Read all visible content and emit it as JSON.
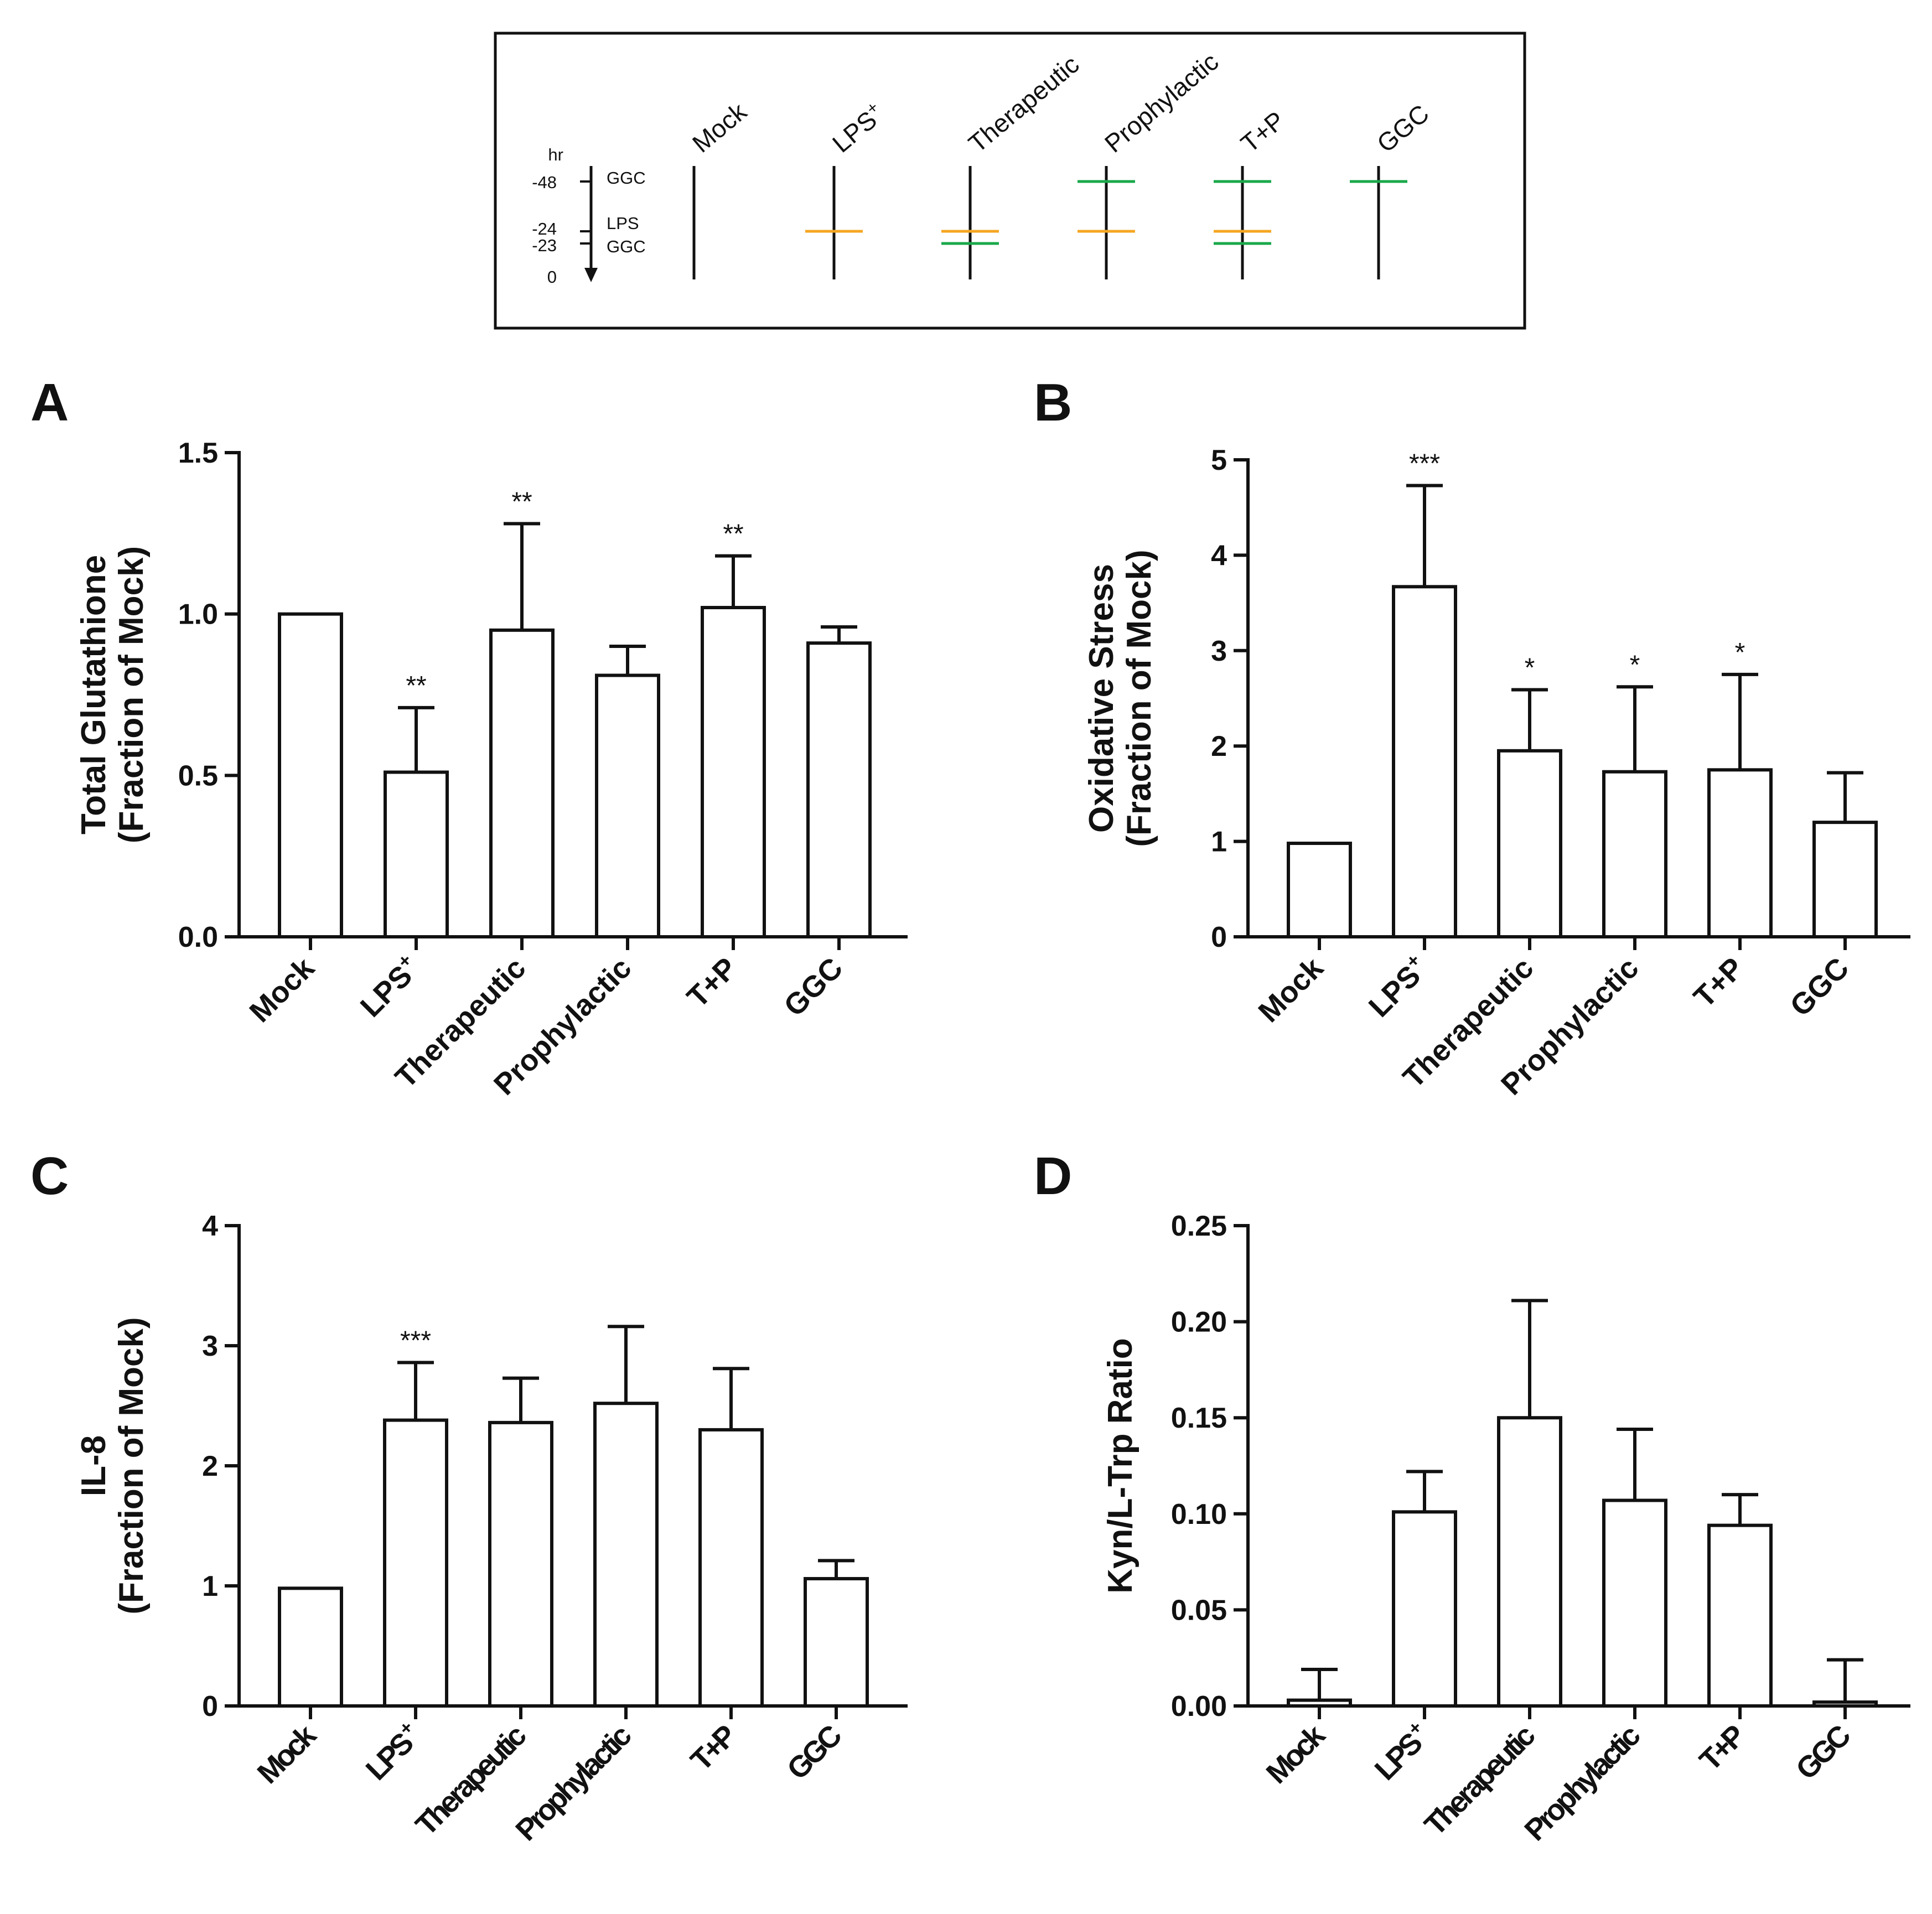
{
  "colors": {
    "lps": "#f5a623",
    "ggc": "#1aa84a",
    "ink": "#111111",
    "bar_fill": "#ffffff"
  },
  "timeline": {
    "axis_unit": "hr",
    "time_labels": [
      "-48",
      "-24",
      "-23",
      "0"
    ],
    "event_labels": [
      "GGC",
      "LPS",
      "GGC"
    ],
    "groups": [
      {
        "name": "Mock",
        "sup": "",
        "treatments": []
      },
      {
        "name": "LPS",
        "sup": "+",
        "treatments": [
          "lps"
        ]
      },
      {
        "name": "Therapeutic",
        "sup": "",
        "treatments": [
          "lps",
          "ggc-23"
        ]
      },
      {
        "name": "Prophylactic",
        "sup": "",
        "treatments": [
          "ggc-48",
          "lps"
        ]
      },
      {
        "name": "T+P",
        "sup": "",
        "treatments": [
          "ggc-48",
          "lps",
          "ggc-23"
        ]
      },
      {
        "name": "GGC",
        "sup": "",
        "treatments": [
          "ggc-48"
        ]
      }
    ]
  },
  "chart_data": [
    {
      "panel": "A",
      "type": "bar",
      "ylabel_line1": "Total Glutathione",
      "ylabel_line2": "(Fraction of Mock)",
      "ylim": [
        0,
        1.5
      ],
      "yticks": [
        0,
        0.5,
        1,
        1.5
      ],
      "ytick_labels": [
        "0.0",
        "0.5",
        "1.0",
        "1.5"
      ],
      "categories": [
        "Mock",
        "LPS",
        "Therapeutic",
        "Prophylactic",
        "T+P",
        "GGC"
      ],
      "category_sup": [
        "",
        "+",
        "",
        "",
        "",
        ""
      ],
      "values": [
        1.0,
        0.51,
        0.95,
        0.81,
        1.02,
        0.91
      ],
      "errors": [
        0,
        0.2,
        0.33,
        0.09,
        0.16,
        0.05
      ],
      "significance": [
        "",
        "**",
        "**",
        "",
        "**",
        ""
      ]
    },
    {
      "panel": "B",
      "type": "bar",
      "ylabel_line1": "Oxidative Stress",
      "ylabel_line2": "(Fraction of Mock)",
      "ylim": [
        0,
        5
      ],
      "yticks": [
        0,
        1,
        2,
        3,
        4,
        5
      ],
      "ytick_labels": [
        "0",
        "1",
        "2",
        "3",
        "4",
        "5"
      ],
      "categories": [
        "Mock",
        "LPS",
        "Therapeutic",
        "Prophylactic",
        "T+P",
        "GGC"
      ],
      "category_sup": [
        "",
        "+",
        "",
        "",
        "",
        ""
      ],
      "values": [
        0.98,
        3.67,
        1.95,
        1.73,
        1.75,
        1.2
      ],
      "errors": [
        0,
        1.06,
        0.64,
        0.89,
        1.0,
        0.52
      ],
      "significance": [
        "",
        "***",
        "*",
        "*",
        "*",
        ""
      ]
    },
    {
      "panel": "C",
      "type": "bar",
      "ylabel_line1": "IL-8",
      "ylabel_line2": "(Fraction of Mock)",
      "ylim": [
        0,
        4
      ],
      "yticks": [
        0,
        1,
        2,
        3,
        4
      ],
      "ytick_labels": [
        "0",
        "1",
        "2",
        "3",
        "4"
      ],
      "categories": [
        "Mock",
        "LPS",
        "Therapeutic",
        "Prophylactic",
        "T+P",
        "GGC"
      ],
      "category_sup": [
        "",
        "+",
        "",
        "",
        "",
        ""
      ],
      "values": [
        0.98,
        2.38,
        2.36,
        2.52,
        2.3,
        1.06
      ],
      "errors": [
        0,
        0.48,
        0.37,
        0.64,
        0.51,
        0.15
      ],
      "significance": [
        "",
        "***",
        "",
        "",
        "",
        ""
      ]
    },
    {
      "panel": "D",
      "type": "bar",
      "ylabel_line1": "Kyn/L-Trp Ratio",
      "ylabel_line2": "",
      "ylim": [
        0,
        0.25
      ],
      "yticks": [
        0,
        0.05,
        0.1,
        0.15,
        0.2,
        0.25
      ],
      "ytick_labels": [
        "0.00",
        "0.05",
        "0.10",
        "0.15",
        "0.20",
        "0.25"
      ],
      "categories": [
        "Mock",
        "LPS",
        "Therapeutic",
        "Prophylactic",
        "T+P",
        "GGC"
      ],
      "category_sup": [
        "",
        "+",
        "",
        "",
        "",
        ""
      ],
      "values": [
        0.003,
        0.101,
        0.15,
        0.107,
        0.094,
        0.002
      ],
      "errors": [
        0.016,
        0.021,
        0.061,
        0.037,
        0.016,
        0.022
      ],
      "significance": [
        "",
        "",
        "",
        "",
        "",
        ""
      ]
    }
  ]
}
